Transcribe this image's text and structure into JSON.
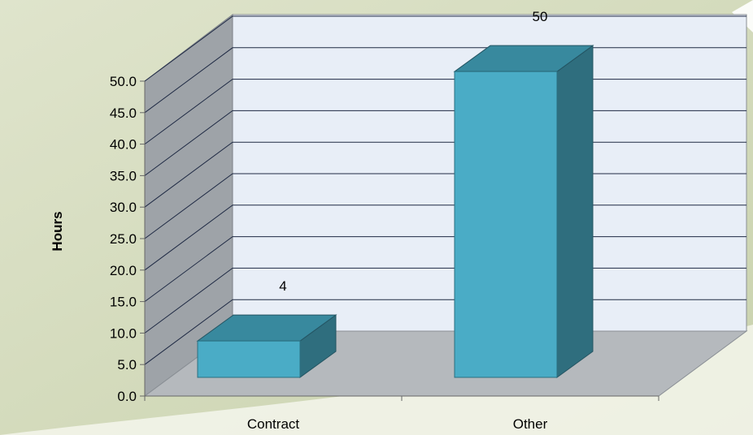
{
  "chart_data": {
    "type": "bar",
    "categories": [
      "Contract",
      "Other"
    ],
    "values": [
      4,
      50
    ],
    "data_labels": [
      "4",
      "50"
    ],
    "title": "",
    "xlabel": "",
    "ylabel": "Hours",
    "ylim": [
      0,
      50
    ],
    "yticks": [
      "0.0",
      "5.0",
      "10.0",
      "15.0",
      "20.0",
      "25.0",
      "30.0",
      "35.0",
      "40.0",
      "45.0",
      "50.0"
    ],
    "grid": true,
    "legend": "none",
    "style": "3d-column",
    "colors": {
      "bar_front": "#4aacc6",
      "bar_top": "#38899e",
      "bar_side": "#2f6e7e",
      "back_wall": "#e8eef7",
      "side_wall": "#9ea3a8",
      "floor": "#b5b9bd",
      "background": "#d6dcc0"
    }
  }
}
